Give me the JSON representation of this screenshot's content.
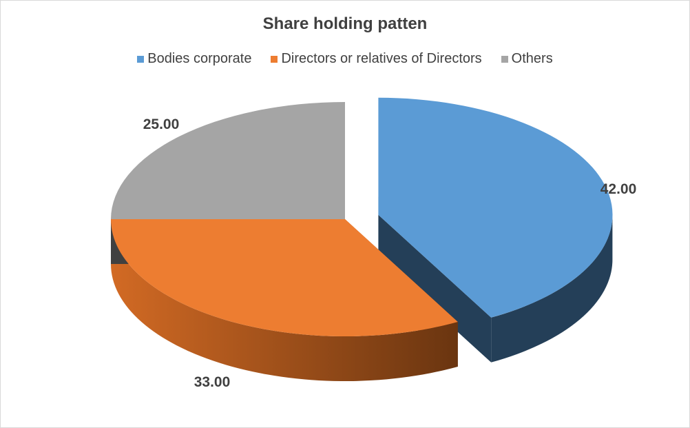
{
  "chart_data": {
    "type": "pie",
    "title": "Share holding patten",
    "categories": [
      "Bodies corporate",
      "Directors or relatives of Directors",
      "Others"
    ],
    "values": [
      42,
      33,
      25
    ],
    "value_labels": [
      "42.00",
      "33.00",
      "25.00"
    ],
    "legend_position": "top",
    "exploded": "Bodies corporate",
    "three_d": true
  },
  "colors": {
    "Bodies corporate": "#5b9bd5",
    "Directors or relatives of Directors": "#ed7d31",
    "Others": "#a5a5a5"
  }
}
